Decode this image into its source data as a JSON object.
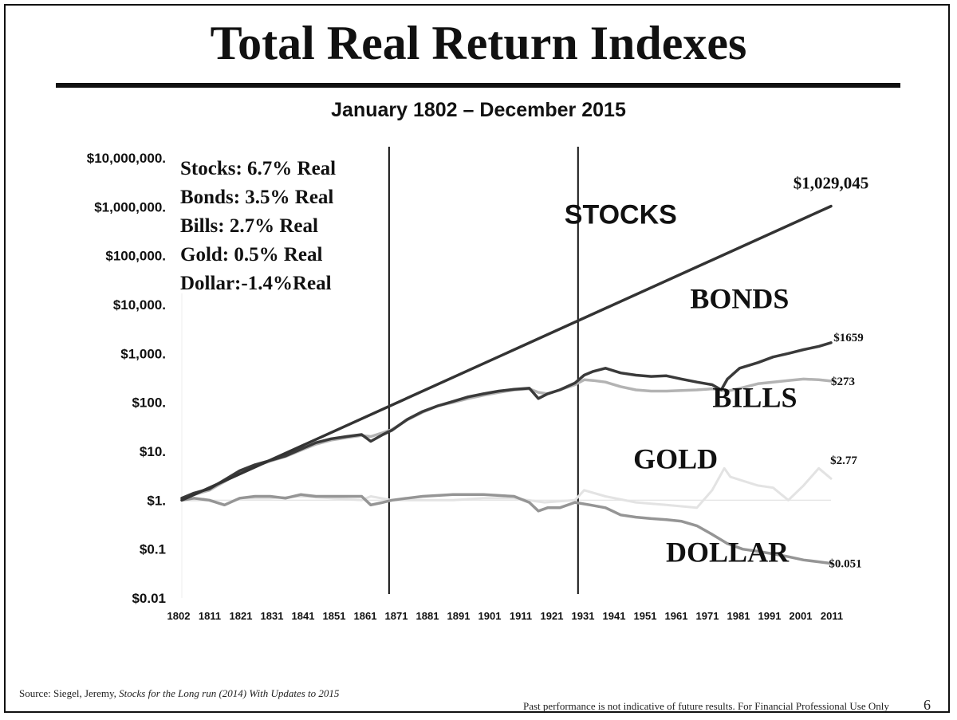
{
  "page": {
    "title": "Total Real Return Indexes",
    "subtitle": "January 1802 – December 2015",
    "source_prefix": "Source: Siegel, Jeremy, ",
    "source_italic": "Stocks for the Long run (2014) With Updates to 2015",
    "disclaimer": "Past performance is not indicative of future results.  For Financial Professional Use Only",
    "page_number": "6"
  },
  "chart_data": {
    "type": "line",
    "title": "Total Real Return Indexes",
    "subtitle": "January 1802 – December 2015",
    "y_scale": "log",
    "ylim": [
      0.01,
      10000000
    ],
    "xlim": [
      1802,
      2015
    ],
    "y_ticks": [
      {
        "value": 10000000,
        "label": "$10,000,000."
      },
      {
        "value": 1000000,
        "label": "$1,000,000."
      },
      {
        "value": 100000,
        "label": "$100,000."
      },
      {
        "value": 10000,
        "label": "$10,000."
      },
      {
        "value": 1000,
        "label": "$1,000."
      },
      {
        "value": 100,
        "label": "$100."
      },
      {
        "value": 10,
        "label": "$10."
      },
      {
        "value": 1,
        "label": "$1."
      },
      {
        "value": 0.1,
        "label": "$0.1"
      },
      {
        "value": 0.01,
        "label": "$0.01"
      }
    ],
    "x_ticks": [
      "1802",
      "1811",
      "1821",
      "1831",
      "1841",
      "1851",
      "1861",
      "1871",
      "1881",
      "1891",
      "1901",
      "1911",
      "1921",
      "1931",
      "1941",
      "1951",
      "1961",
      "1971",
      "1981",
      "1991",
      "2001",
      "2011"
    ],
    "vertical_lines": [
      1870,
      1932
    ],
    "reference_line": 1,
    "legend_box": [
      "Stocks:  6.7% Real",
      "Bonds:  3.5% Real",
      "Bills:     2.7% Real",
      "Gold:    0.5% Real",
      "Dollar:-1.4%Real"
    ],
    "series": [
      {
        "name": "STOCKS",
        "color": "#333333",
        "end_label": "$1,029,045",
        "x": [
          1802,
          2015
        ],
        "y": [
          1,
          1029045
        ]
      },
      {
        "name": "BONDS",
        "color": "#3a3a3a",
        "end_label": "$1659",
        "x": [
          1802,
          1806,
          1811,
          1816,
          1821,
          1826,
          1831,
          1836,
          1841,
          1846,
          1851,
          1856,
          1861,
          1864,
          1868,
          1871,
          1876,
          1881,
          1886,
          1891,
          1896,
          1901,
          1906,
          1911,
          1916,
          1919,
          1922,
          1926,
          1931,
          1934,
          1937,
          1941,
          1946,
          1951,
          1956,
          1961,
          1966,
          1971,
          1976,
          1979,
          1981,
          1985,
          1991,
          1996,
          2001,
          2006,
          2011,
          2015
        ],
        "y": [
          1.1,
          1.4,
          1.7,
          2.6,
          4,
          5.3,
          6.5,
          8,
          11,
          15,
          18,
          20,
          22,
          16,
          22,
          27,
          45,
          65,
          85,
          105,
          130,
          150,
          170,
          185,
          195,
          120,
          150,
          180,
          250,
          360,
          430,
          500,
          400,
          360,
          340,
          350,
          300,
          260,
          230,
          180,
          300,
          500,
          650,
          850,
          1000,
          1200,
          1400,
          1659
        ]
      },
      {
        "name": "BILLS",
        "color": "#b3b3b3",
        "end_label": "$273",
        "x": [
          1802,
          1806,
          1811,
          1816,
          1821,
          1826,
          1831,
          1836,
          1841,
          1846,
          1851,
          1856,
          1861,
          1864,
          1868,
          1871,
          1876,
          1881,
          1886,
          1891,
          1896,
          1901,
          1906,
          1911,
          1916,
          1919,
          1922,
          1926,
          1931,
          1934,
          1937,
          1941,
          1946,
          1951,
          1956,
          1961,
          1966,
          1971,
          1976,
          1981,
          1986,
          1991,
          1996,
          2001,
          2006,
          2011,
          2015
        ],
        "y": [
          1.1,
          1.3,
          1.6,
          2.4,
          3.8,
          5,
          6.3,
          7.8,
          10.5,
          14,
          17,
          19,
          21,
          20,
          24,
          28,
          44,
          63,
          85,
          100,
          120,
          140,
          160,
          180,
          190,
          160,
          150,
          180,
          230,
          290,
          280,
          260,
          210,
          180,
          170,
          170,
          175,
          180,
          190,
          170,
          200,
          240,
          260,
          280,
          300,
          290,
          273
        ]
      },
      {
        "name": "GOLD",
        "color": "#e3e3e3",
        "end_label": "$2.77",
        "x": [
          1802,
          1811,
          1816,
          1821,
          1831,
          1841,
          1851,
          1861,
          1864,
          1871,
          1881,
          1891,
          1901,
          1911,
          1921,
          1931,
          1934,
          1941,
          1951,
          1961,
          1971,
          1976,
          1980,
          1982,
          1986,
          1991,
          1996,
          2001,
          2006,
          2011,
          2015
        ],
        "y": [
          1,
          1,
          0.8,
          1.1,
          1.1,
          1.2,
          1.1,
          1,
          1.2,
          1,
          1,
          1,
          1.1,
          1.1,
          0.9,
          1,
          1.6,
          1.2,
          0.9,
          0.8,
          0.7,
          1.6,
          4.5,
          3,
          2.5,
          2,
          1.8,
          1,
          2,
          4.5,
          2.77
        ]
      },
      {
        "name": "DOLLAR",
        "color": "#959595",
        "end_label": "$0.051",
        "x": [
          1802,
          1806,
          1811,
          1816,
          1821,
          1826,
          1831,
          1836,
          1841,
          1846,
          1851,
          1856,
          1861,
          1864,
          1868,
          1871,
          1876,
          1881,
          1891,
          1901,
          1911,
          1916,
          1919,
          1922,
          1926,
          1931,
          1936,
          1941,
          1946,
          1951,
          1956,
          1961,
          1966,
          1971,
          1976,
          1981,
          1986,
          1991,
          1996,
          2001,
          2006,
          2011,
          2015
        ],
        "y": [
          1,
          1.1,
          1,
          0.8,
          1.1,
          1.2,
          1.2,
          1.1,
          1.3,
          1.2,
          1.2,
          1.2,
          1.2,
          0.8,
          0.9,
          1,
          1.1,
          1.2,
          1.3,
          1.3,
          1.2,
          0.9,
          0.6,
          0.7,
          0.7,
          0.9,
          0.8,
          0.7,
          0.5,
          0.45,
          0.42,
          0.4,
          0.37,
          0.3,
          0.2,
          0.13,
          0.1,
          0.09,
          0.08,
          0.07,
          0.06,
          0.055,
          0.051
        ]
      }
    ],
    "annotations": [
      {
        "text": "STOCKS",
        "style": "sans",
        "x": 1946,
        "y": 450000
      },
      {
        "text": "BONDS",
        "style": "serif",
        "x": 1985,
        "y": 8500
      },
      {
        "text": "BILLS",
        "style": "serif",
        "x": 1990,
        "y": 80
      },
      {
        "text": "GOLD",
        "style": "serif",
        "x": 1964,
        "y": 4.5
      },
      {
        "text": "DOLLAR",
        "style": "serif",
        "x": 1981,
        "y": 0.055
      }
    ]
  }
}
